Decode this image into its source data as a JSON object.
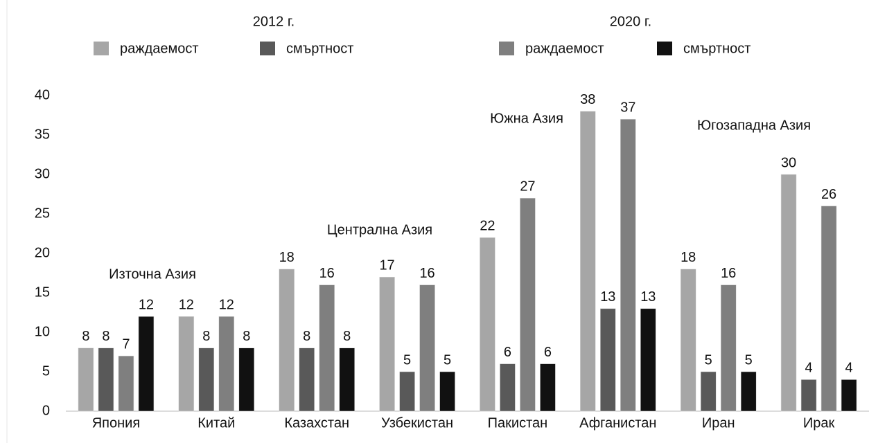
{
  "chart_data": {
    "type": "bar",
    "legend_groups": [
      "2012 г.",
      "2020 г."
    ],
    "categories": [
      "Япония",
      "Китай",
      "Казахстан",
      "Узбекистан",
      "Пакистан",
      "Афганистан",
      "Иран",
      "Ирак"
    ],
    "series": [
      {
        "name": "раждаемост",
        "color": "#a6a6a6",
        "values": [
          8,
          12,
          18,
          17,
          22,
          38,
          18,
          30
        ]
      },
      {
        "name": "смъртност",
        "color": "#595959",
        "values": [
          8,
          8,
          8,
          5,
          6,
          13,
          5,
          4
        ]
      },
      {
        "name": "раждаемост",
        "color": "#7f7f7f",
        "values": [
          7,
          12,
          16,
          16,
          27,
          37,
          16,
          26
        ]
      },
      {
        "name": "смъртност",
        "color": "#111111",
        "values": [
          12,
          8,
          8,
          5,
          6,
          13,
          5,
          4
        ]
      }
    ],
    "annotations": [
      "Източна Азия",
      "Централна Азия",
      "Южна Азия",
      "Югозападна Азия"
    ],
    "ylim": [
      0,
      40
    ],
    "yticks": [
      0,
      5,
      10,
      15,
      20,
      25,
      30,
      35,
      40
    ],
    "grid": false
  }
}
